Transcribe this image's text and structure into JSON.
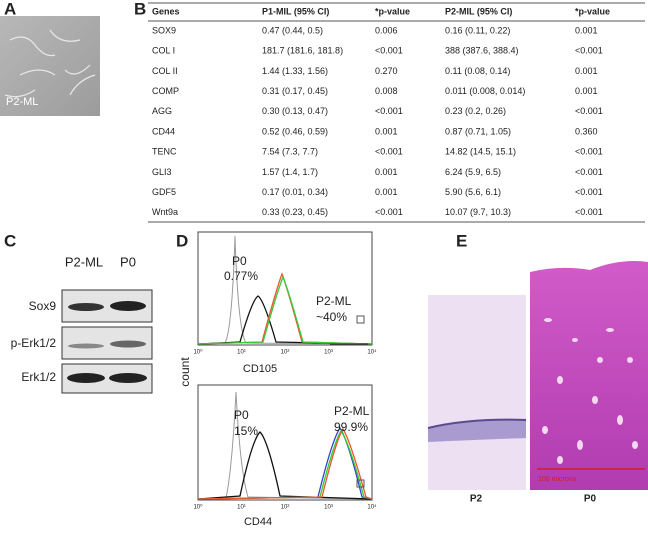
{
  "panels": {
    "a": {
      "label": "A",
      "image_label": "P2-ML"
    },
    "b": {
      "label": "B",
      "table": {
        "headers": [
          "Genes",
          "P1-MIL (95%  CI)",
          "*p-value",
          "P2-MIL (95%  CI)",
          "*p-value"
        ],
        "rows": [
          [
            "SOX9",
            "0.47 (0.44, 0.5)",
            "0.006",
            "0.16 (0.11, 0.22)",
            "0.001"
          ],
          [
            "COL I",
            "181.7 (181.6, 181.8)",
            "<0.001",
            "388 (387.6, 388.4)",
            "<0.001"
          ],
          [
            "COL II",
            "1.44 (1.33, 1.56)",
            "0.270",
            "0.11 (0.08, 0.14)",
            "0.001"
          ],
          [
            "COMP",
            "0.31 (0.17, 0.45)",
            "0.008",
            "0.011 (0.008, 0.014)",
            "0.001"
          ],
          [
            "AGG",
            "0.30 (0.13, 0.47)",
            "<0.001",
            "0.23 (0.2, 0.26)",
            "<0.001"
          ],
          [
            "CD44",
            "0.52 (0.46, 0.59)",
            "0.001",
            "0.87 (0.71, 1.05)",
            "0.360"
          ],
          [
            "TENC",
            "7.54 (7.3, 7.7)",
            "<0.001",
            "14.82 (14.5, 15.1)",
            "<0.001"
          ],
          [
            "GLI3",
            "1.57 (1.4, 1.7)",
            "0.001",
            "6.24 (5.9, 6.5)",
            "<0.001"
          ],
          [
            "GDF5",
            "0.17 (0.01, 0.34)",
            "0.001",
            "5.90 (5.6, 6.1)",
            "<0.001"
          ],
          [
            "Wnt9a",
            "0.33 (0.23, 0.45)",
            "<0.001",
            "10.07 (9.7, 10.3)",
            "<0.001"
          ]
        ]
      }
    },
    "c": {
      "label": "C",
      "lanes": [
        "P2-ML",
        "P0"
      ],
      "bands": [
        "Sox9",
        "p-Erk1/2",
        "Erk1/2"
      ]
    },
    "d": {
      "label": "D",
      "y_axis_label": "count",
      "x_ticks": [
        "10⁰",
        "10¹",
        "10²",
        "10³",
        "10⁴"
      ],
      "plots": [
        {
          "x_axis_label": "CD105",
          "p0_name": "P0",
          "p0_value": "0.77%",
          "ml_name": "P2-ML",
          "ml_value": "~40%"
        },
        {
          "x_axis_label": "CD44",
          "p0_name": "P0",
          "p0_value": "15%",
          "ml_name": "P2-ML",
          "ml_value": "99.9%"
        }
      ]
    },
    "e": {
      "label": "E",
      "images": [
        "P2",
        "P0"
      ],
      "scale_bar": "100 microns"
    }
  }
}
